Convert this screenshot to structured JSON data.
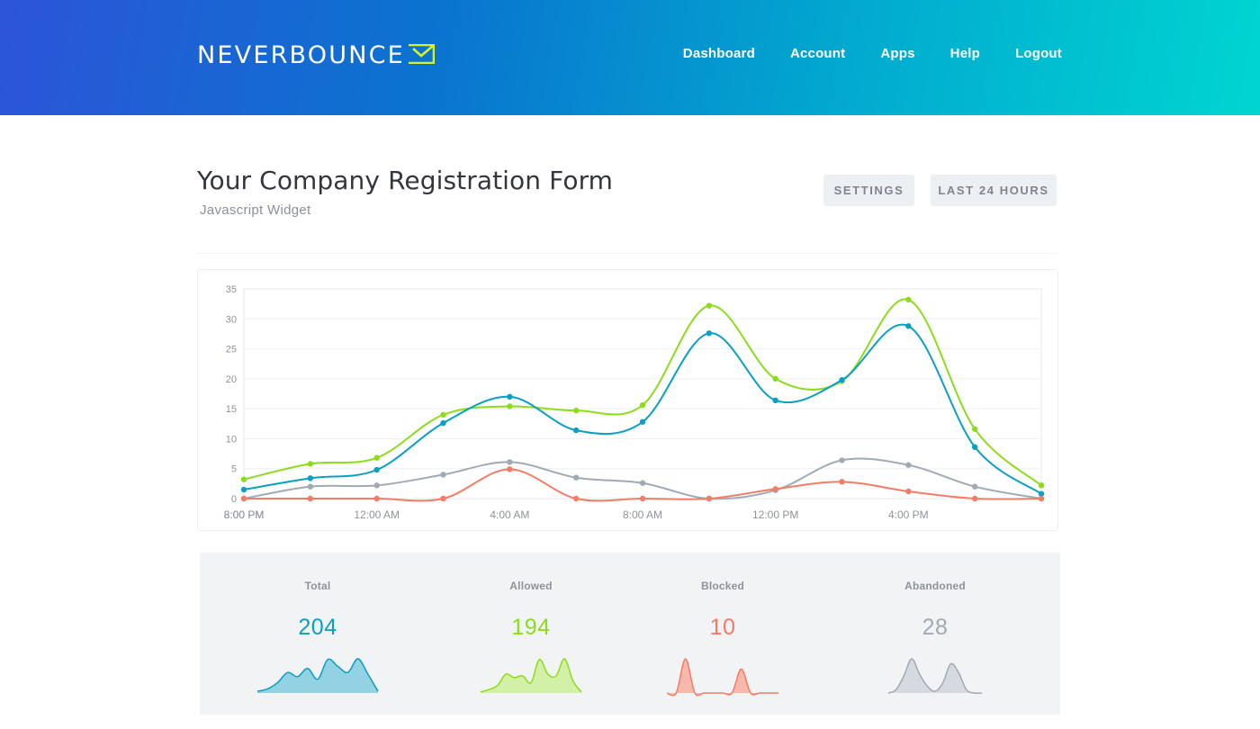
{
  "brand": {
    "name": "NEVERBOUNCE",
    "accent": "#d8f02a"
  },
  "nav": [
    {
      "label": "Dashboard"
    },
    {
      "label": "Account"
    },
    {
      "label": "Apps"
    },
    {
      "label": "Help"
    },
    {
      "label": "Logout"
    }
  ],
  "page": {
    "title": "Your Company Registration Form",
    "subtitle": "Javascript Widget",
    "settings_label": "SETTINGS",
    "range_label": "LAST 24 HOURS"
  },
  "chart_data": {
    "type": "line",
    "x": [
      "8:00 PM",
      "10:00 PM",
      "12:00 AM",
      "2:00 AM",
      "4:00 AM",
      "6:00 AM",
      "8:00 AM",
      "10:00 AM",
      "12:00 PM",
      "2:00 PM",
      "4:00 PM",
      "6:00 PM",
      "8:00 PM"
    ],
    "xtick_labels": [
      "8:00 PM",
      "12:00 AM",
      "4:00 AM",
      "8:00 AM",
      "12:00 PM",
      "4:00 PM",
      "8:00 PM"
    ],
    "yticks": [
      0,
      5,
      10,
      15,
      20,
      25,
      30,
      35
    ],
    "ylim": [
      0,
      35
    ],
    "grid": true,
    "series": [
      {
        "key": "allowed",
        "color": "#8ddc1c",
        "values": [
          3.2,
          5.8,
          6.8,
          14,
          15.4,
          14.7,
          15.6,
          32.2,
          20,
          19.6,
          33.2,
          11.6,
          2.2
        ]
      },
      {
        "key": "total",
        "color": "#0a9fc3",
        "values": [
          1.5,
          3.4,
          4.8,
          12.6,
          17,
          11.4,
          12.8,
          27.6,
          16.4,
          19.8,
          28.8,
          8.6,
          0.8
        ]
      },
      {
        "key": "abandoned",
        "color": "#a0aab4",
        "values": [
          0,
          2,
          2.2,
          4,
          6.1,
          3.5,
          2.6,
          0,
          1.4,
          6.4,
          5.6,
          2,
          0
        ]
      },
      {
        "key": "blocked",
        "color": "#f27c66",
        "values": [
          0,
          0,
          0,
          0,
          4.9,
          0,
          0,
          0,
          1.6,
          2.8,
          1.2,
          0,
          0
        ]
      }
    ]
  },
  "stats": [
    {
      "label": "Total",
      "value": "204",
      "color": "#0a9fc3",
      "fill": "#92d2e2",
      "spark": [
        0.05,
        0.12,
        0.3,
        0.6,
        0.48,
        0.72,
        0.4,
        0.98,
        0.78,
        0.6,
        1.0,
        0.55,
        0.05
      ]
    },
    {
      "label": "Allowed",
      "value": "194",
      "color": "#8ddc1c",
      "fill": "#d2f0a6",
      "spark": [
        0.03,
        0.1,
        0.22,
        0.55,
        0.45,
        0.5,
        0.3,
        0.98,
        0.55,
        0.5,
        1.0,
        0.35,
        0.03
      ]
    },
    {
      "label": "Blocked",
      "value": "10",
      "color": "#f27c66",
      "fill": "#f8b9ac",
      "spark": [
        0,
        0,
        1.0,
        0,
        0,
        0,
        0,
        0,
        0.7,
        0,
        0,
        0,
        0
      ]
    },
    {
      "label": "Abandoned",
      "value": "28",
      "color": "#a0aab4",
      "fill": "#d4dae0",
      "spark": [
        0,
        0.1,
        0.5,
        1.0,
        0.55,
        0.2,
        0.05,
        0.3,
        0.85,
        0.6,
        0.1,
        0,
        0
      ]
    }
  ]
}
